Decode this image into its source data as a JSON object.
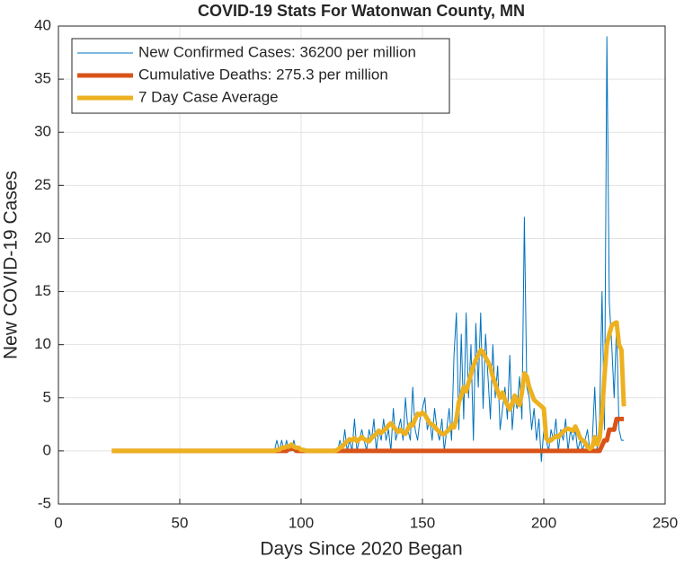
{
  "chart_data": {
    "type": "line",
    "title": "COVID-19 Stats For Watonwan County, MN",
    "x_label": "Days Since 2020 Began",
    "y_label": "New COVID-19 Cases",
    "xlim": [
      0,
      250
    ],
    "xticks": [
      0,
      50,
      100,
      150,
      200,
      250
    ],
    "ylim": [
      -5,
      40
    ],
    "yticks": [
      -5,
      0,
      5,
      10,
      15,
      20,
      25,
      30,
      35,
      40
    ],
    "grid": true,
    "legend": "upper-left",
    "x": [
      22,
      40,
      60,
      80,
      87,
      88,
      89,
      90,
      91,
      92,
      93,
      94,
      95,
      96,
      97,
      98,
      99,
      100,
      101,
      102,
      103,
      104,
      105,
      106,
      107,
      108,
      109,
      110,
      111,
      112,
      113,
      114,
      115,
      116,
      117,
      118,
      119,
      120,
      121,
      122,
      123,
      124,
      125,
      126,
      127,
      128,
      129,
      130,
      131,
      132,
      133,
      134,
      135,
      136,
      137,
      138,
      139,
      140,
      141,
      142,
      143,
      144,
      145,
      146,
      147,
      148,
      149,
      150,
      151,
      152,
      153,
      154,
      155,
      156,
      157,
      158,
      159,
      160,
      161,
      162,
      163,
      164,
      165,
      166,
      167,
      168,
      169,
      170,
      171,
      172,
      173,
      174,
      175,
      176,
      177,
      178,
      179,
      180,
      181,
      182,
      183,
      184,
      185,
      186,
      187,
      188,
      189,
      190,
      191,
      192,
      193,
      194,
      195,
      196,
      197,
      198,
      199,
      200,
      201,
      202,
      203,
      204,
      205,
      206,
      207,
      208,
      209,
      210,
      211,
      212,
      213,
      214,
      215,
      216,
      217,
      218,
      219,
      220,
      221,
      222,
      223,
      224,
      225,
      226,
      227,
      228,
      229,
      230,
      231,
      232,
      233
    ],
    "series": [
      {
        "name": "New Confirmed Cases: 36200 per million",
        "color": "#0072BD",
        "width": 1,
        "values": [
          0,
          0,
          0,
          0,
          0,
          0,
          0,
          1,
          0,
          1,
          0,
          1,
          0,
          0,
          1,
          0,
          0,
          0,
          0,
          0,
          0,
          0,
          0,
          0,
          0,
          0,
          0,
          0,
          0,
          0,
          0,
          0,
          0,
          1,
          0,
          2,
          0,
          1,
          0,
          3,
          0,
          1,
          2,
          1,
          0,
          2,
          1,
          3,
          0,
          2,
          1,
          3,
          1,
          2,
          0,
          4,
          1,
          2,
          3,
          1,
          5,
          2,
          1,
          6,
          2,
          1,
          3,
          4,
          5,
          2,
          3,
          1,
          4,
          2,
          1,
          3,
          0,
          2,
          4,
          1,
          9,
          13,
          2,
          11,
          3,
          13,
          5,
          10,
          1,
          12,
          6,
          13,
          4,
          11,
          7,
          3,
          10,
          5,
          8,
          2,
          4,
          6,
          3,
          9,
          2,
          5,
          4,
          7,
          3,
          22,
          6,
          5,
          2,
          4,
          1,
          3,
          -1,
          2,
          1,
          0,
          2,
          1,
          3,
          0,
          2,
          1,
          3,
          0,
          2,
          1,
          2,
          0,
          1,
          0,
          1,
          2,
          0,
          1,
          6,
          0,
          3,
          15,
          2,
          39,
          14,
          10,
          5,
          12,
          2,
          1,
          1
        ]
      },
      {
        "name": "Cumulative Deaths: 275.3 per million",
        "color": "#D95319",
        "width": 5,
        "values": [
          0,
          0,
          0,
          0,
          0,
          0,
          0,
          0,
          0,
          0,
          0,
          0,
          0.2,
          0.2,
          0.2,
          0,
          0,
          0,
          0,
          0,
          0,
          0,
          0,
          0,
          0,
          0,
          0,
          0,
          0,
          0,
          0,
          0,
          0,
          0,
          0,
          0,
          0,
          0,
          0,
          0,
          0,
          0,
          0,
          0,
          0,
          0,
          0,
          0,
          0,
          0,
          0,
          0,
          0,
          0,
          0,
          0,
          0,
          0,
          0,
          0,
          0,
          0,
          0,
          0,
          0,
          0,
          0,
          0,
          0,
          0,
          0,
          0,
          0,
          0,
          0,
          0,
          0,
          0,
          0,
          0,
          0,
          0,
          0,
          0,
          0,
          0,
          0,
          0,
          0,
          0,
          0,
          0,
          0,
          0,
          0,
          0,
          0,
          0,
          0,
          0,
          0,
          0,
          0,
          0,
          0,
          0,
          0,
          0,
          0,
          0,
          0,
          0,
          0,
          0,
          0,
          0,
          0,
          0,
          0,
          0,
          0,
          0,
          0,
          0,
          0,
          0,
          0,
          0,
          0,
          0,
          0,
          0,
          0,
          0,
          0,
          0,
          0,
          0,
          0,
          0,
          0,
          0.5,
          1,
          1,
          2,
          2,
          2,
          3,
          3,
          3,
          3
        ]
      },
      {
        "name": "7 Day Case Average",
        "color": "#EDB120",
        "width": 5,
        "values": [
          0,
          0,
          0,
          0,
          0,
          0,
          0,
          0.1,
          0.1,
          0.3,
          0.3,
          0.4,
          0.4,
          0.6,
          0.4,
          0.3,
          0.3,
          0.1,
          0.1,
          0,
          0,
          0,
          0,
          0,
          0,
          0,
          0,
          0,
          0,
          0,
          0,
          0,
          0.1,
          0.3,
          0.4,
          0.7,
          0.9,
          1.1,
          1.0,
          1.2,
          0.9,
          1.1,
          1.3,
          1.1,
          1.0,
          0.9,
          1.2,
          1.4,
          1.6,
          1.9,
          1.7,
          1.9,
          2.1,
          2.4,
          2.6,
          2.3,
          2.0,
          1.8,
          2.0,
          1.7,
          1.6,
          2.1,
          2.5,
          2.4,
          3.0,
          3.5,
          3.4,
          3.6,
          3.4,
          3.0,
          2.6,
          2.5,
          2.3,
          2.0,
          1.8,
          1.6,
          1.6,
          1.8,
          2.0,
          2.4,
          2.2,
          3.0,
          4.6,
          5.2,
          6.0,
          5.6,
          6.4,
          7.2,
          8.0,
          8.6,
          9.0,
          9.5,
          9.3,
          8.8,
          8.4,
          7.9,
          7.0,
          6.3,
          5.6,
          5.0,
          5.5,
          4.8,
          4.3,
          3.9,
          4.5,
          5.2,
          4.6,
          4.3,
          5.5,
          7.3,
          7.0,
          6.0,
          5.4,
          4.8,
          4.6,
          4.4,
          4.2,
          4.0,
          1.2,
          0.9,
          1.0,
          1.2,
          1.4,
          1.3,
          1.6,
          1.8,
          2.0,
          2.1,
          2.0,
          1.9,
          2.3,
          1.8,
          1.2,
          1.0,
          0.8,
          0.4,
          0.2,
          0.4,
          1.3,
          0.6,
          1.2,
          3.5,
          7.0,
          10.0,
          11.0,
          11.8,
          12.0,
          12.1,
          10.0,
          9.5,
          4.2
        ]
      }
    ]
  }
}
